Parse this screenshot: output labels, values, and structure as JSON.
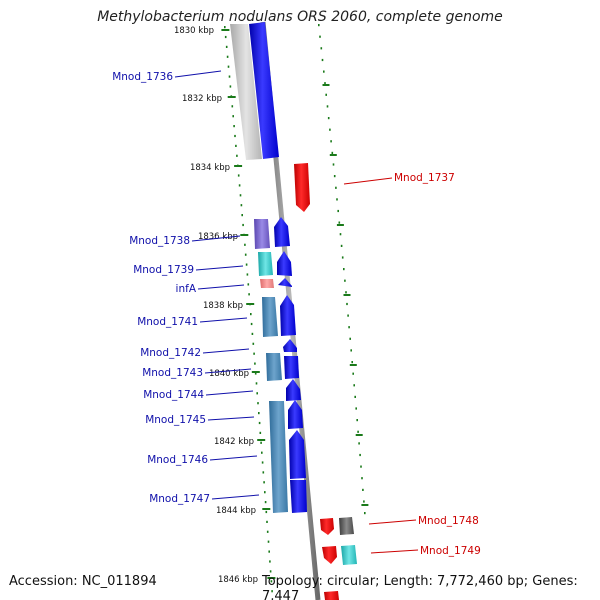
{
  "title": "Methylobacterium nodulans ORS 2060, complete genome",
  "accession": "Accession: NC_011894",
  "topology": "Topology: circular; Length: 7,772,460 bp; Genes: 7,447",
  "colors": {
    "forward_cds": "#0000ee",
    "reverse_cds": "#ee0000",
    "backbone": "#8c8c8c",
    "ticks": "#1a7a1a",
    "label_forward": "#1010aa",
    "label_reverse": "#cc0000"
  },
  "ticks": [
    "1830 kbp",
    "1832 kbp",
    "1834 kbp",
    "1836 kbp",
    "1838 kbp",
    "1840 kbp",
    "1842 kbp",
    "1844 kbp",
    "1846 kbp"
  ],
  "genes_forward": [
    "Mnod_1736",
    "Mnod_1738",
    "Mnod_1739",
    "infA",
    "Mnod_1741",
    "Mnod_1742",
    "Mnod_1743",
    "Mnod_1744",
    "Mnod_1745",
    "Mnod_1746",
    "Mnod_1747"
  ],
  "genes_reverse": [
    "Mnod_1737",
    "Mnod_1748",
    "Mnod_1749"
  ]
}
